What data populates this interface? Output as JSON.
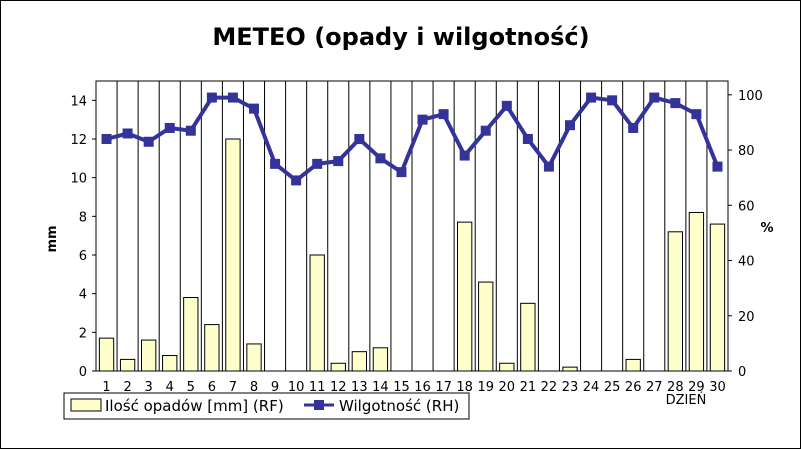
{
  "chart_data": {
    "type": "bar",
    "title": "METEO (opady i wilgotność)",
    "xlabel": "DZIEŃ",
    "ylabel": "mm",
    "y2label": "%",
    "categories": [
      "1",
      "2",
      "3",
      "4",
      "5",
      "6",
      "7",
      "8",
      "9",
      "10",
      "11",
      "12",
      "13",
      "14",
      "15",
      "16",
      "17",
      "18",
      "19",
      "20",
      "21",
      "22",
      "23",
      "24",
      "25",
      "26",
      "27",
      "28",
      "29",
      "30"
    ],
    "ylim": [
      0,
      15
    ],
    "yticks": [
      "0",
      "2",
      "4",
      "6",
      "8",
      "10",
      "12",
      "14"
    ],
    "y2lim": [
      0,
      105
    ],
    "y2ticks": [
      "0",
      "20",
      "40",
      "60",
      "80",
      "100"
    ],
    "grid": "vertical",
    "legend_position": "bottom-left",
    "series": [
      {
        "name": "Ilość opadów [mm] (RF)",
        "type": "bar",
        "axis": "left",
        "color": "#ffffcc",
        "values": [
          1.7,
          0.6,
          1.6,
          0.8,
          3.8,
          2.4,
          12.0,
          1.4,
          0,
          0,
          6.0,
          0.4,
          1.0,
          1.2,
          0,
          0,
          0,
          7.7,
          4.6,
          0.4,
          3.5,
          0,
          0.2,
          0,
          0,
          0.6,
          0,
          7.2,
          8.2,
          7.6
        ]
      },
      {
        "name": "Wilgotność (RH)",
        "type": "line",
        "axis": "right",
        "color": "#333399",
        "values": [
          84,
          86,
          83,
          88,
          87,
          99,
          99,
          95,
          75,
          69,
          75,
          76,
          84,
          77,
          72,
          91,
          93,
          78,
          87,
          96,
          84,
          74,
          89,
          99,
          98,
          88,
          99,
          97,
          93,
          74
        ]
      }
    ]
  }
}
